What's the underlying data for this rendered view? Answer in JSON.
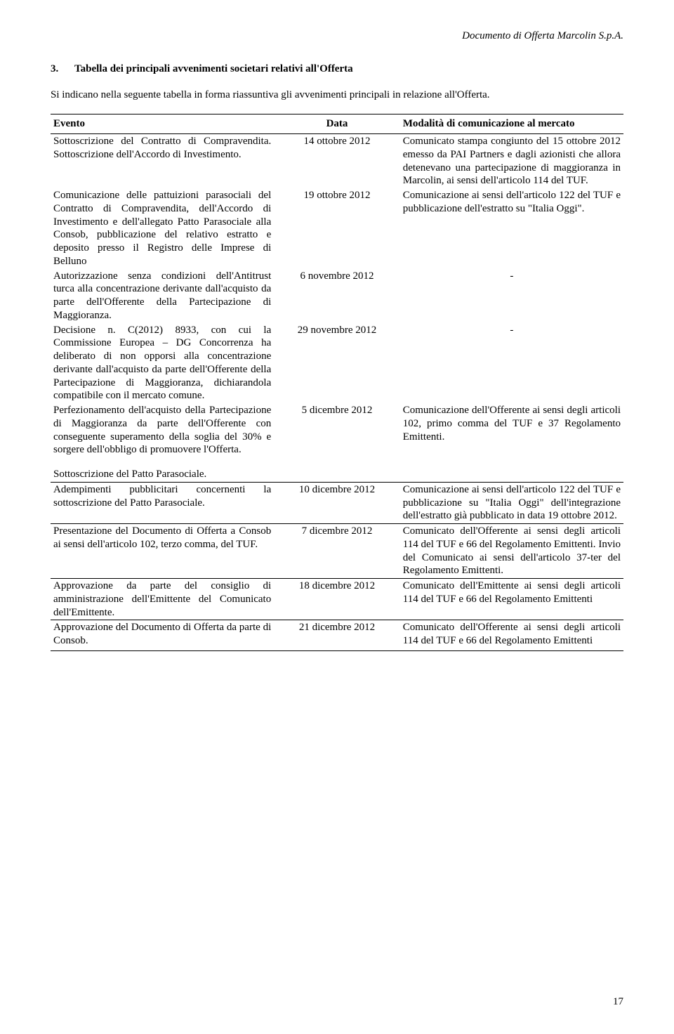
{
  "runningHeader": "Documento di Offerta Marcolin S.p.A.",
  "section": {
    "number": "3.",
    "title": "Tabella dei principali avvenimenti societari relativi all'Offerta",
    "intro": "Si indicano nella seguente tabella in forma riassuntiva gli avvenimenti principali in relazione all'Offerta."
  },
  "columns": {
    "evento": "Evento",
    "data": "Data",
    "modalita": "Modalità di comunicazione al mercato"
  },
  "rows": [
    {
      "evento": "Sottoscrizione del Contratto di Compravendita. Sottoscrizione dell'Accordo di Investimento.",
      "data": "14 ottobre 2012",
      "modalita": "Comunicato stampa congiunto del 15 ottobre 2012 emesso da PAI Partners e dagli azionisti che allora detenevano una partecipazione di maggioranza in Marcolin, ai sensi dell'articolo 114 del TUF."
    },
    {
      "evento": "Comunicazione delle pattuizioni parasociali del Contratto di Compravendita, dell'Accordo di Investimento e dell'allegato Patto Parasociale alla Consob, pubblicazione del relativo estratto e deposito presso il Registro delle Imprese di Belluno",
      "data": "19 ottobre 2012",
      "modalita": "Comunicazione ai sensi dell'articolo 122 del TUF e pubblicazione dell'estratto su \"Italia Oggi\"."
    },
    {
      "evento": "Autorizzazione senza condizioni dell'Antitrust turca alla concentrazione derivante dall'acquisto da parte dell'Offerente della Partecipazione di Maggioranza.",
      "data": "6 novembre 2012",
      "modalita": "-",
      "center": true
    },
    {
      "evento": "Decisione n. C(2012) 8933, con cui la Commissione Europea – DG Concorrenza ha deliberato di non opporsi alla concentrazione derivante dall'acquisto da parte dell'Offerente della Partecipazione di Maggioranza, dichiarandola compatibile con il mercato comune.",
      "data": "29 novembre 2012",
      "modalita": "-",
      "center": true
    },
    {
      "evento": "Perfezionamento dell'acquisto della Partecipazione di Maggioranza da parte dell'Offerente con conseguente superamento della soglia del 30% e sorgere dell'obbligo di promuovere l'Offerta.",
      "data": "5 dicembre 2012",
      "modalita": "Comunicazione dell'Offerente ai sensi degli articoli 102, primo comma del TUF e 37 Regolamento Emittenti."
    }
  ],
  "midrow": {
    "evento": "Sottoscrizione del Patto Parasociale."
  },
  "rows2": [
    {
      "evento": "Adempimenti pubblicitari concernenti la sottoscrizione del Patto Parasociale.",
      "data": "10 dicembre 2012",
      "modalita": "Comunicazione ai sensi dell'articolo 122 del TUF e pubblicazione su \"Italia Oggi\" dell'integrazione dell'estratto già pubblicato in data 19 ottobre 2012."
    },
    {
      "evento": "Presentazione del Documento di Offerta a Consob ai sensi dell'articolo 102, terzo comma, del TUF.",
      "data": "7 dicembre 2012",
      "modalita": "Comunicato dell'Offerente ai sensi degli articoli 114 del TUF e 66 del Regolamento Emittenti. Invio del Comunicato ai sensi dell'articolo 37-ter del Regolamento Emittenti."
    },
    {
      "evento": "Approvazione da parte del consiglio di amministrazione dell'Emittente del Comunicato dell'Emittente.",
      "data": "18 dicembre 2012",
      "modalita": "Comunicato dell'Emittente ai sensi degli articoli 114 del TUF e 66 del Regolamento Emittenti"
    },
    {
      "evento": "Approvazione del Documento di Offerta da parte di Consob.",
      "data": "21 dicembre 2012",
      "modalita": "Comunicato dell'Offerente ai sensi degli articoli 114 del TUF e 66 del Regolamento Emittenti"
    }
  ],
  "pageNumber": "17",
  "style": {
    "pageWidth": 960,
    "pageHeight": 1472,
    "textColor": "#000000",
    "background": "#ffffff",
    "baseFontSize": 15,
    "fontFamily": "Times New Roman"
  }
}
